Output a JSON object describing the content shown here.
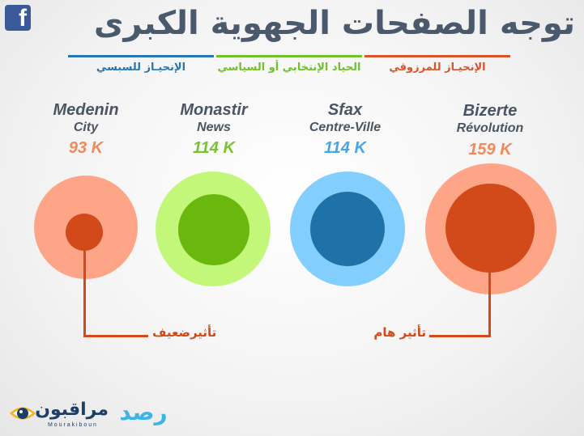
{
  "header": {
    "title": "توجه الصفحات الجهوية الكبرى",
    "fb_icon": "facebook-icon",
    "fb_letter": "f"
  },
  "legend": [
    {
      "label": "الإنحيـاز  للسبسي",
      "color": "#2776b2"
    },
    {
      "label": "الحياد الإنتخابي أو السياسي",
      "color": "#72c02c"
    },
    {
      "label": "الإنحيـاز  للمرزوقي",
      "color": "#d9532a"
    }
  ],
  "pages": [
    {
      "name_line1": "Medenin",
      "name_line2": "City",
      "value": "93 K",
      "value_color": "#f08a5c",
      "outer_color": "#ffa587",
      "inner_color": "#d24a19"
    },
    {
      "name_line1": "Monastir",
      "name_line2": "News",
      "value": "114 K",
      "value_color": "#7ac233",
      "outer_color": "#c3f77a",
      "inner_color": "#6ab80e"
    },
    {
      "name_line1": "Sfax",
      "name_line2": "Centre-Ville",
      "value": "114 K",
      "value_color": "#4aa6e0",
      "outer_color": "#82ceff",
      "inner_color": "#1e72a8"
    },
    {
      "name_line1": "Bizerte",
      "name_line2": "Révolution",
      "value": "159 K",
      "value_color": "#f08a5c",
      "outer_color": "#ffa587",
      "inner_color": "#d24a19"
    }
  ],
  "callouts": {
    "weak": "تأثيرضعيف",
    "strong": "تأثير هام",
    "color": "#d24a19"
  },
  "footer": {
    "logo_arabic": "مراقبون",
    "logo_latin": "M o u r a k i b o u n",
    "logo_icon": "eye-icon",
    "rasad": "رصد"
  }
}
